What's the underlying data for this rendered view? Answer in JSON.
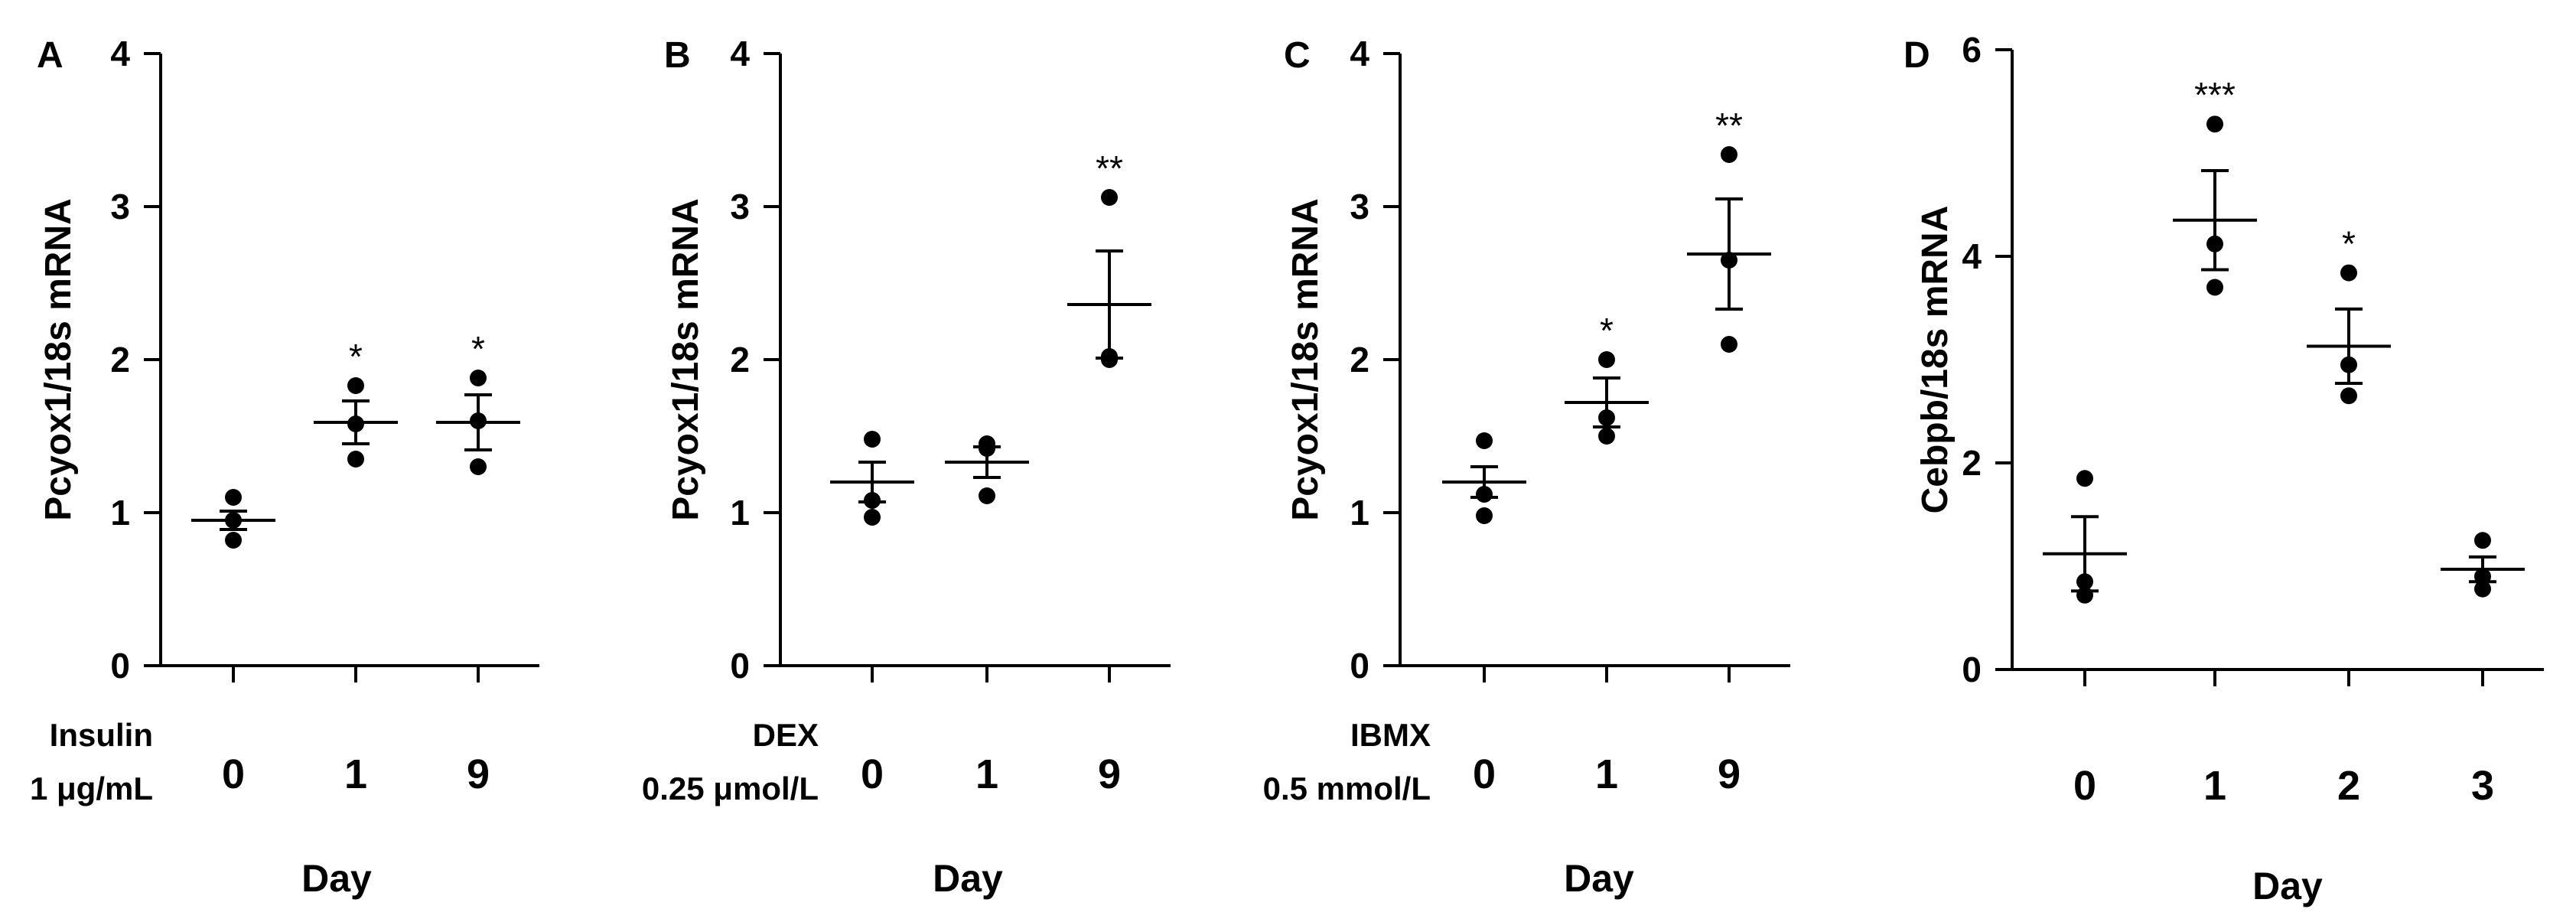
{
  "chart_data": [
    {
      "panel": "A",
      "type": "scatter",
      "ylabel": "Pcyox1/18s mRNA",
      "xlabel": "Day",
      "treatment_lines": [
        "Insulin",
        "1 μg/mL"
      ],
      "ylim": [
        0,
        4
      ],
      "yticks": [
        "0",
        "1",
        "2",
        "3",
        "4"
      ],
      "categories": [
        "0",
        "1",
        "9"
      ],
      "groups": [
        {
          "day": "0",
          "points": [
            1.1,
            0.95,
            0.82
          ],
          "mean": 0.95,
          "sem": 0.06,
          "sig": ""
        },
        {
          "day": "1",
          "points": [
            1.83,
            1.58,
            1.35
          ],
          "mean": 1.59,
          "sem": 0.14,
          "sig": "*"
        },
        {
          "day": "9",
          "points": [
            1.88,
            1.6,
            1.3
          ],
          "mean": 1.59,
          "sem": 0.18,
          "sig": "*"
        }
      ]
    },
    {
      "panel": "B",
      "type": "scatter",
      "ylabel": "Pcyox1/18s mRNA",
      "xlabel": "Day",
      "treatment_lines": [
        "DEX",
        "0.25 μmol/L"
      ],
      "ylim": [
        0,
        4
      ],
      "yticks": [
        "0",
        "1",
        "2",
        "3",
        "4"
      ],
      "categories": [
        "0",
        "1",
        "9"
      ],
      "groups": [
        {
          "day": "0",
          "points": [
            1.48,
            1.08,
            0.97
          ],
          "mean": 1.2,
          "sem": 0.13,
          "sig": ""
        },
        {
          "day": "1",
          "points": [
            1.42,
            1.45,
            1.11
          ],
          "mean": 1.33,
          "sem": 0.1,
          "sig": ""
        },
        {
          "day": "9",
          "points": [
            3.06,
            2.02,
            2.0
          ],
          "mean": 2.36,
          "sem": 0.35,
          "sig": "**"
        }
      ]
    },
    {
      "panel": "C",
      "type": "scatter",
      "ylabel": "Pcyox1/18s mRNA",
      "xlabel": "Day",
      "treatment_lines": [
        "IBMX",
        "0.5 mmol/L"
      ],
      "ylim": [
        0,
        4
      ],
      "yticks": [
        "0",
        "1",
        "2",
        "3",
        "4"
      ],
      "categories": [
        "0",
        "1",
        "9"
      ],
      "groups": [
        {
          "day": "0",
          "points": [
            1.47,
            1.12,
            0.98
          ],
          "mean": 1.2,
          "sem": 0.1,
          "sig": ""
        },
        {
          "day": "1",
          "points": [
            2.0,
            1.62,
            1.5
          ],
          "mean": 1.72,
          "sem": 0.16,
          "sig": "*"
        },
        {
          "day": "9",
          "points": [
            3.34,
            2.65,
            2.1
          ],
          "mean": 2.69,
          "sem": 0.36,
          "sig": "**"
        }
      ]
    },
    {
      "panel": "D",
      "type": "scatter",
      "ylabel": "Cebpb/18s mRNA",
      "xlabel": "Day",
      "treatment_lines": [],
      "ylim": [
        0,
        6
      ],
      "yticks": [
        "0",
        "2",
        "4",
        "6"
      ],
      "categories": [
        "0",
        "1",
        "2",
        "3"
      ],
      "groups": [
        {
          "day": "0",
          "points": [
            1.85,
            0.85,
            0.72
          ],
          "mean": 1.12,
          "sem": 0.36,
          "sig": ""
        },
        {
          "day": "1",
          "points": [
            5.28,
            4.12,
            3.7
          ],
          "mean": 4.35,
          "sem": 0.48,
          "sig": "***"
        },
        {
          "day": "2",
          "points": [
            3.84,
            2.95,
            2.65
          ],
          "mean": 3.13,
          "sem": 0.36,
          "sig": "*"
        },
        {
          "day": "3",
          "points": [
            1.25,
            0.9,
            0.78
          ],
          "mean": 0.97,
          "sem": 0.12,
          "sig": ""
        }
      ]
    }
  ]
}
